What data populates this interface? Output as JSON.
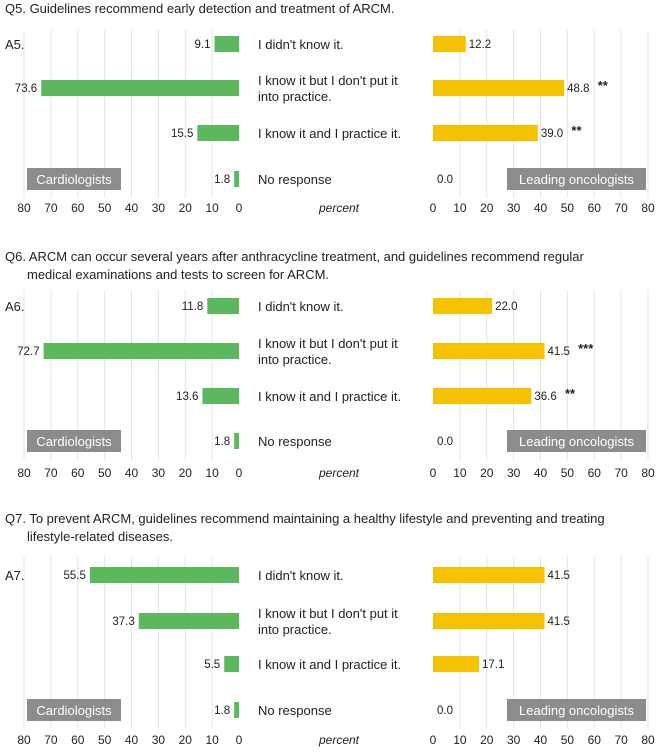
{
  "colors": {
    "cardiologists": "#5cb85c",
    "oncologists": "#f5c200",
    "label_box": "#8c8c8c",
    "label_text": "#ffffff",
    "grid": "#e3e3e3"
  },
  "chart_data": [
    {
      "type": "bar",
      "title": "Q5. Guidelines recommend early detection and treatment of ARCM.",
      "answer_label": "A5.",
      "categories": [
        [
          "I didn't know it."
        ],
        [
          "I know it but I don't put it",
          "into practice."
        ],
        [
          "I know it and I practice it."
        ],
        [
          "No response"
        ]
      ],
      "series": [
        {
          "name": "Cardiologists",
          "values": [
            9.1,
            73.6,
            15.5,
            1.8
          ],
          "labels": [
            "9.1",
            "73.6",
            "15.5",
            "1.8"
          ],
          "annotations": [
            "",
            "",
            "",
            ""
          ]
        },
        {
          "name": "Leading oncologists",
          "values": [
            12.2,
            48.8,
            39.0,
            0.0
          ],
          "labels": [
            "12.2",
            "48.8",
            "39.0",
            "0.0"
          ],
          "annotations": [
            "",
            "**",
            "**",
            ""
          ]
        }
      ],
      "xlim": [
        0,
        80
      ],
      "ticks_left": [
        "80",
        "70",
        "60",
        "50",
        "40",
        "30",
        "20",
        "10",
        "0"
      ],
      "ticks_right": [
        "0",
        "10",
        "20",
        "30",
        "40",
        "50",
        "60",
        "70",
        "80"
      ],
      "xlabel": "percent"
    },
    {
      "type": "bar",
      "title": [
        "Q6. ARCM can occur several years after anthracycline treatment, and guidelines recommend regular",
        "medical examinations and tests to screen for ARCM."
      ],
      "answer_label": "A6.",
      "categories": [
        [
          "I didn't know it."
        ],
        [
          "I know it but I don't put it",
          "into practice."
        ],
        [
          "I know it and I practice it."
        ],
        [
          "No response"
        ]
      ],
      "series": [
        {
          "name": "Cardiologists",
          "values": [
            11.8,
            72.7,
            13.6,
            1.8
          ],
          "labels": [
            "11.8",
            "72.7",
            "13.6",
            "1.8"
          ],
          "annotations": [
            "",
            "",
            "",
            ""
          ]
        },
        {
          "name": "Leading oncologists",
          "values": [
            22.0,
            41.5,
            36.6,
            0.0
          ],
          "labels": [
            "22.0",
            "41.5",
            "36.6",
            "0.0"
          ],
          "annotations": [
            "",
            "***",
            "**",
            ""
          ]
        }
      ],
      "xlim": [
        0,
        80
      ],
      "ticks_left": [
        "80",
        "70",
        "60",
        "50",
        "40",
        "30",
        "20",
        "10",
        "0"
      ],
      "ticks_right": [
        "0",
        "10",
        "20",
        "30",
        "40",
        "50",
        "60",
        "70",
        "80"
      ],
      "xlabel": "percent"
    },
    {
      "type": "bar",
      "title": [
        "Q7. To prevent ARCM, guidelines recommend maintaining a healthy lifestyle and preventing and treating",
        "lifestyle-related diseases."
      ],
      "answer_label": "A7.",
      "categories": [
        [
          "I didn't know it."
        ],
        [
          "I know it but I don't put it",
          "into practice."
        ],
        [
          "I know it and I practice it."
        ],
        [
          "No response"
        ]
      ],
      "series": [
        {
          "name": "Cardiologists",
          "values": [
            55.5,
            37.3,
            5.5,
            1.8
          ],
          "labels": [
            "55.5",
            "37.3",
            "5.5",
            "1.8"
          ],
          "annotations": [
            "",
            "",
            "",
            ""
          ]
        },
        {
          "name": "Leading oncologists",
          "values": [
            41.5,
            41.5,
            17.1,
            0.0
          ],
          "labels": [
            "41.5",
            "41.5",
            "17.1",
            "0.0"
          ],
          "annotations": [
            "",
            "",
            "",
            ""
          ]
        }
      ],
      "xlim": [
        0,
        80
      ],
      "ticks_left": [
        "80",
        "70",
        "60",
        "50",
        "40",
        "30",
        "20",
        "10",
        "0"
      ],
      "ticks_right": [
        "0",
        "10",
        "20",
        "30",
        "40",
        "50",
        "60",
        "70",
        "80"
      ],
      "xlabel": "percent"
    }
  ]
}
